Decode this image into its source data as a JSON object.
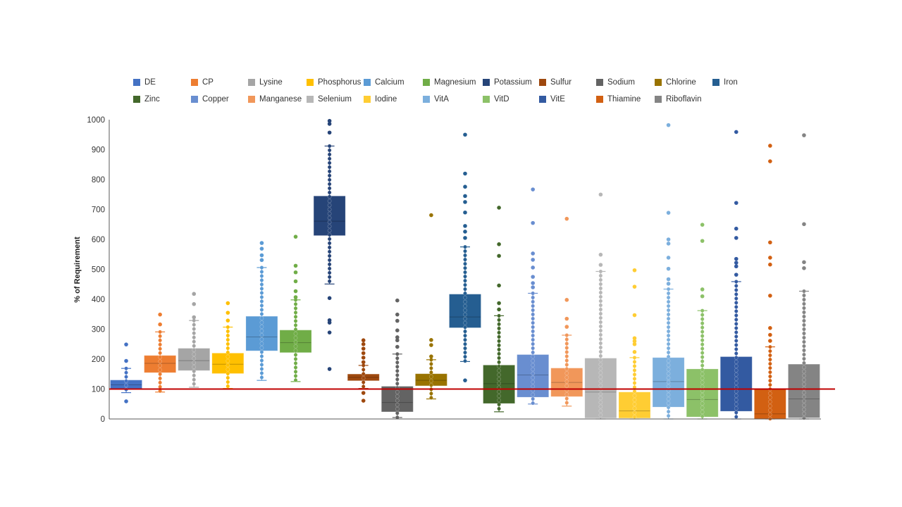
{
  "chart_data": {
    "type": "box",
    "title": "",
    "xlabel": "",
    "ylabel": "% of Requirement",
    "ylim": [
      0,
      1000
    ],
    "yticks": [
      "0",
      "100",
      "200",
      "300",
      "400",
      "500",
      "600",
      "700",
      "800",
      "900",
      "1000"
    ],
    "grid": false,
    "legend_placement": "top",
    "reference_line": {
      "value": 100,
      "color": "#C00000"
    },
    "series": [
      {
        "name": "DE",
        "color": "#4472C4",
        "whisker_low": 88,
        "q1": 102,
        "median": 114,
        "q3": 129,
        "whisker_high": 169,
        "outliers": [
          59,
          194,
          249
        ]
      },
      {
        "name": "CP",
        "color": "#ED7D31",
        "whisker_low": 90,
        "q1": 156,
        "median": 186,
        "q3": 211,
        "whisker_high": 291,
        "outliers": [
          316,
          349
        ]
      },
      {
        "name": "Lysine",
        "color": "#A5A5A5",
        "whisker_low": 106,
        "q1": 163,
        "median": 195,
        "q3": 235,
        "whisker_high": 329,
        "outliers": [
          340,
          384,
          418
        ]
      },
      {
        "name": "Phosphorus",
        "color": "#FFC000",
        "whisker_low": 102,
        "q1": 153,
        "median": 183,
        "q3": 219,
        "whisker_high": 307,
        "outliers": [
          329,
          355,
          387
        ]
      },
      {
        "name": "Calcium",
        "color": "#5B9BD5",
        "whisker_low": 129,
        "q1": 229,
        "median": 274,
        "q3": 342,
        "whisker_high": 506,
        "outliers": [
          531,
          547,
          569,
          588
        ]
      },
      {
        "name": "Magnesium",
        "color": "#70AD47",
        "whisker_low": 125,
        "q1": 223,
        "median": 255,
        "q3": 296,
        "whisker_high": 398,
        "outliers": [
          407,
          427,
          460,
          490,
          512,
          609
        ]
      },
      {
        "name": "Potassium",
        "color": "#264478",
        "whisker_low": 451,
        "q1": 614,
        "median": 661,
        "q3": 744,
        "whisker_high": 912,
        "outliers": [
          167,
          289,
          322,
          330,
          404,
          957,
          986,
          996
        ]
      },
      {
        "name": "Sulfur",
        "color": "#9E480E",
        "whisker_low": 102,
        "q1": 129,
        "median": 139,
        "q3": 149,
        "whisker_high": 179,
        "outliers": [
          61,
          87,
          190,
          205,
          220,
          235,
          250,
          263
        ]
      },
      {
        "name": "Sodium",
        "color": "#636363",
        "whisker_low": 5,
        "q1": 25,
        "median": 55,
        "q3": 108,
        "whisker_high": 217,
        "outliers": [
          241,
          263,
          273,
          296,
          328,
          349,
          396
        ]
      },
      {
        "name": "Chlorine",
        "color": "#997300",
        "whisker_low": 67,
        "q1": 112,
        "median": 129,
        "q3": 150,
        "whisker_high": 198,
        "outliers": [
          209,
          247,
          264,
          681
        ]
      },
      {
        "name": "Iron",
        "color": "#255E91",
        "whisker_low": 192,
        "q1": 306,
        "median": 341,
        "q3": 416,
        "whisker_high": 575,
        "outliers": [
          129,
          605,
          626,
          645,
          690,
          725,
          745,
          776,
          820,
          950
        ]
      },
      {
        "name": "Zinc",
        "color": "#43682B",
        "whisker_low": 24,
        "q1": 53,
        "median": 118,
        "q3": 179,
        "whisker_high": 345,
        "outliers": [
          366,
          387,
          446,
          545,
          584,
          706
        ]
      },
      {
        "name": "Copper",
        "color": "#698ED0",
        "whisker_low": 50,
        "q1": 74,
        "median": 147,
        "q3": 214,
        "whisker_high": 420,
        "outliers": [
          440,
          454,
          475,
          506,
          532,
          553,
          655,
          767
        ]
      },
      {
        "name": "Manganese",
        "color": "#F1975A",
        "whisker_low": 43,
        "q1": 76,
        "median": 122,
        "q3": 169,
        "whisker_high": 280,
        "outliers": [
          308,
          335,
          398,
          669
        ]
      },
      {
        "name": "Selenium",
        "color": "#B7B7B7",
        "whisker_low": 0,
        "q1": 4,
        "median": 90,
        "q3": 202,
        "whisker_high": 493,
        "outliers": [
          515,
          549,
          750
        ]
      },
      {
        "name": "Iodine",
        "color": "#FFCD33",
        "whisker_low": 0,
        "q1": 4,
        "median": 27,
        "q3": 89,
        "whisker_high": 205,
        "outliers": [
          224,
          250,
          260,
          270,
          347,
          442,
          497
        ]
      },
      {
        "name": "VitA",
        "color": "#7CAFDD",
        "whisker_low": 0,
        "q1": 41,
        "median": 125,
        "q3": 204,
        "whisker_high": 434,
        "outliers": [
          452,
          467,
          502,
          539,
          586,
          600,
          689,
          982
        ]
      },
      {
        "name": "VitD",
        "color": "#8CC168",
        "whisker_low": 0,
        "q1": 8,
        "median": 65,
        "q3": 166,
        "whisker_high": 362,
        "outliers": [
          410,
          433,
          595,
          649
        ]
      },
      {
        "name": "VitE",
        "color": "#335AA1",
        "whisker_low": 0,
        "q1": 27,
        "median": 100,
        "q3": 207,
        "whisker_high": 459,
        "outliers": [
          482,
          510,
          522,
          535,
          605,
          636,
          722,
          959
        ]
      },
      {
        "name": "Thiamine",
        "color": "#D26012",
        "whisker_low": 0,
        "q1": 0,
        "median": 17,
        "q3": 98,
        "whisker_high": 241,
        "outliers": [
          261,
          281,
          304,
          412,
          516,
          539,
          590,
          861,
          913
        ]
      },
      {
        "name": "Riboflavin",
        "color": "#848484",
        "whisker_low": 0,
        "q1": 5,
        "median": 67,
        "q3": 182,
        "whisker_high": 427,
        "outliers": [
          504,
          524,
          651,
          948
        ]
      }
    ]
  }
}
